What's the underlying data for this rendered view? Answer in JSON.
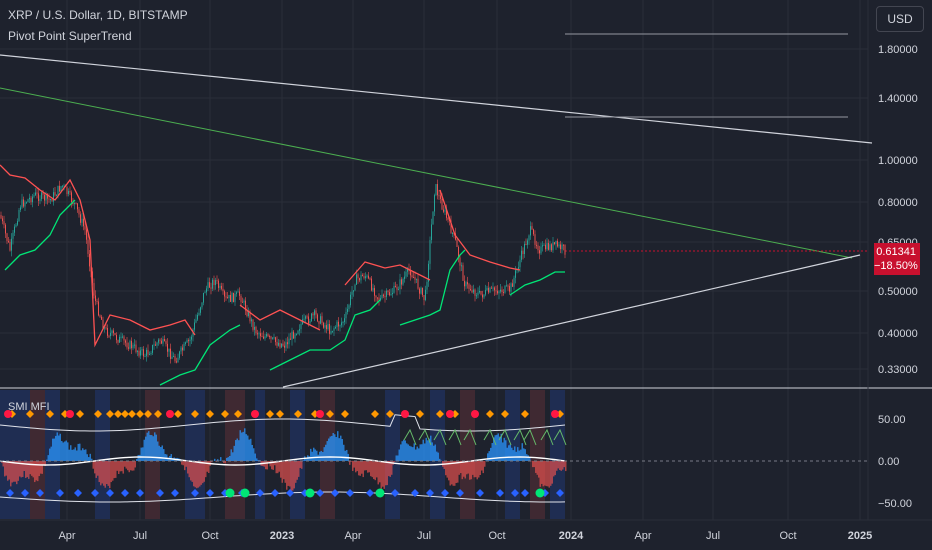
{
  "header": {
    "symbol_title": "XRP / U.S. Dollar, 1D, BITSTAMP",
    "indicator_name": "Pivot Point SuperTrend"
  },
  "currency_button": "USD",
  "price_tag": {
    "price": "0.61341",
    "change": "−18.50%"
  },
  "price_axis": {
    "labels": [
      "1.80000",
      "1.40000",
      "1.00000",
      "0.80000",
      "0.65000",
      "0.50000",
      "0.40000",
      "0.33000"
    ],
    "scale": "log"
  },
  "oscillator_panel": {
    "title": "SMI MFI",
    "axis_labels": [
      "50.00",
      "0.00",
      "−50.00"
    ]
  },
  "time_axis": {
    "labels": [
      "Apr",
      "Jul",
      "Oct",
      "2023",
      "Apr",
      "Jul",
      "Oct",
      "2024",
      "Apr",
      "Jul",
      "Oct",
      "2025"
    ]
  },
  "colors": {
    "background": "#1e222d",
    "candle_up": "#26a69a",
    "candle_down": "#ef5350",
    "supertrend_up": "#00e676",
    "supertrend_down": "#ff5252",
    "trendline_white": "#d1d4dc",
    "trendline_green": "#4caf50",
    "price_tag": "#c8102e"
  }
}
